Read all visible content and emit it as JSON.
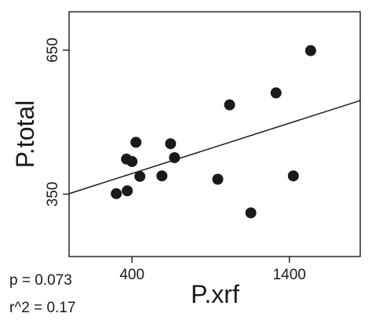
{
  "chart_data": {
    "type": "scatter",
    "title": "",
    "xlabel": "P.xrf",
    "ylabel": "P.total",
    "xlim": [
      0,
      1850
    ],
    "ylim": [
      220,
      730
    ],
    "xticks": [
      400,
      1400
    ],
    "yticks": [
      350,
      650
    ],
    "xtick_labels": [
      "400",
      "1400"
    ],
    "ytick_labels": [
      "350",
      "650"
    ],
    "grid": false,
    "legend": "none",
    "points": [
      {
        "x": 300,
        "y": 351
      },
      {
        "x": 370,
        "y": 357
      },
      {
        "x": 365,
        "y": 423
      },
      {
        "x": 400,
        "y": 418
      },
      {
        "x": 425,
        "y": 458
      },
      {
        "x": 450,
        "y": 387
      },
      {
        "x": 590,
        "y": 388
      },
      {
        "x": 645,
        "y": 455
      },
      {
        "x": 670,
        "y": 426
      },
      {
        "x": 945,
        "y": 381
      },
      {
        "x": 1020,
        "y": 536
      },
      {
        "x": 1155,
        "y": 311
      },
      {
        "x": 1315,
        "y": 561
      },
      {
        "x": 1425,
        "y": 388
      },
      {
        "x": 1535,
        "y": 649
      }
    ],
    "trendline": {
      "x": [
        0,
        1850
      ],
      "y": [
        351,
        545
      ]
    },
    "marker_color": "#1a1a1a",
    "line_color": "#1a1a1a"
  },
  "stats": {
    "p_text": "p = 0.073",
    "r2_text": "r^2 = 0.17"
  }
}
